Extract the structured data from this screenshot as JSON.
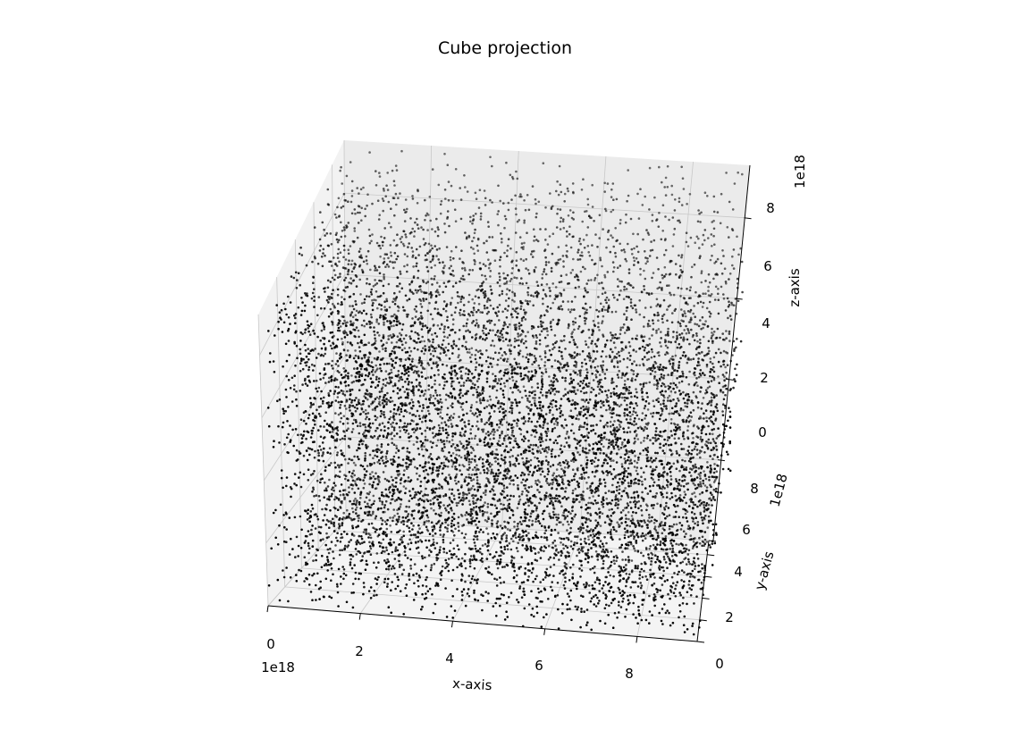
{
  "chart_data": {
    "type": "scatter",
    "projection": "3d",
    "title": "Cube projection",
    "xlabel": "x-axis",
    "ylabel": "y-axis",
    "zlabel": "z-axis",
    "xlim": [
      0,
      9.3e+18
    ],
    "ylim": [
      0,
      9.3e+18
    ],
    "zlim": [
      0,
      9.3e+18
    ],
    "x_ticks": [
      "0",
      "2",
      "4",
      "6",
      "8"
    ],
    "y_ticks": [
      "0",
      "2",
      "4",
      "6",
      "8"
    ],
    "z_ticks": [
      "0",
      "2",
      "4",
      "6",
      "8"
    ],
    "x_offset_label": "1e18",
    "y_offset_label": "1e18",
    "z_offset_label": "1e18",
    "grid": true,
    "point_color": "#000000",
    "distribution": "uniform random points filling the cube, approx. 9000 points",
    "point_count": 9000
  }
}
